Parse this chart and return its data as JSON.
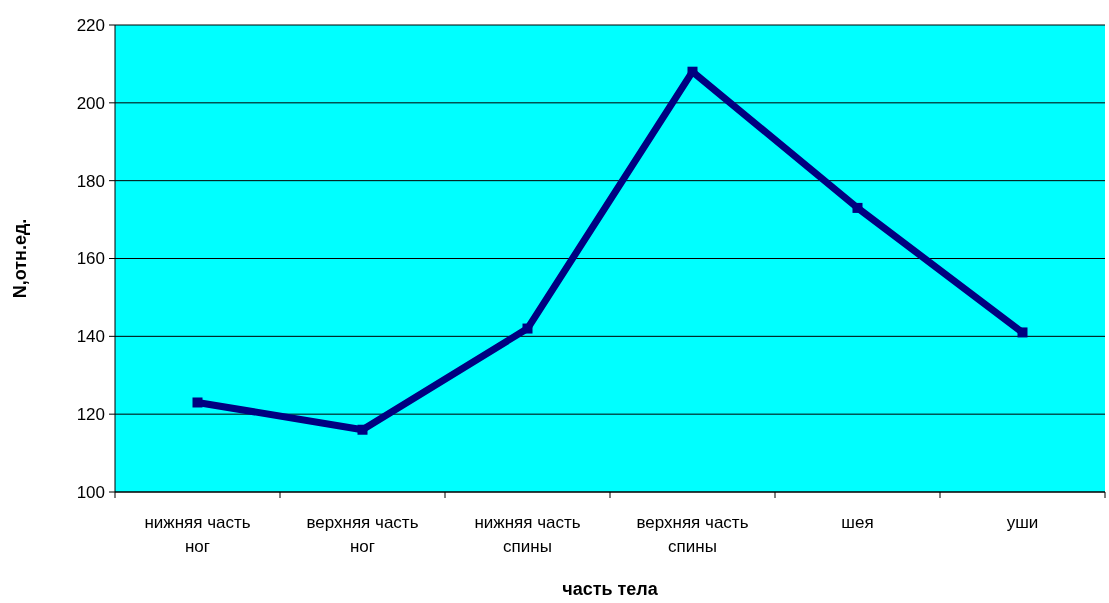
{
  "chart_data": {
    "type": "line",
    "xlabel": "часть тела",
    "ylabel": "N,отн.ед.",
    "categories": [
      "нижняя часть ног",
      "верхняя часть ног",
      "нижняя часть спины",
      "верхняя часть спины",
      "шея",
      "уши"
    ],
    "series": [
      {
        "color": "#000080",
        "values": [
          123,
          116,
          142,
          208,
          173,
          141
        ]
      }
    ],
    "ylim": [
      100,
      220
    ],
    "yticks": [
      100,
      120,
      140,
      160,
      180,
      200,
      220
    ],
    "grid": "y",
    "marker": "square",
    "line_style": "solid"
  }
}
